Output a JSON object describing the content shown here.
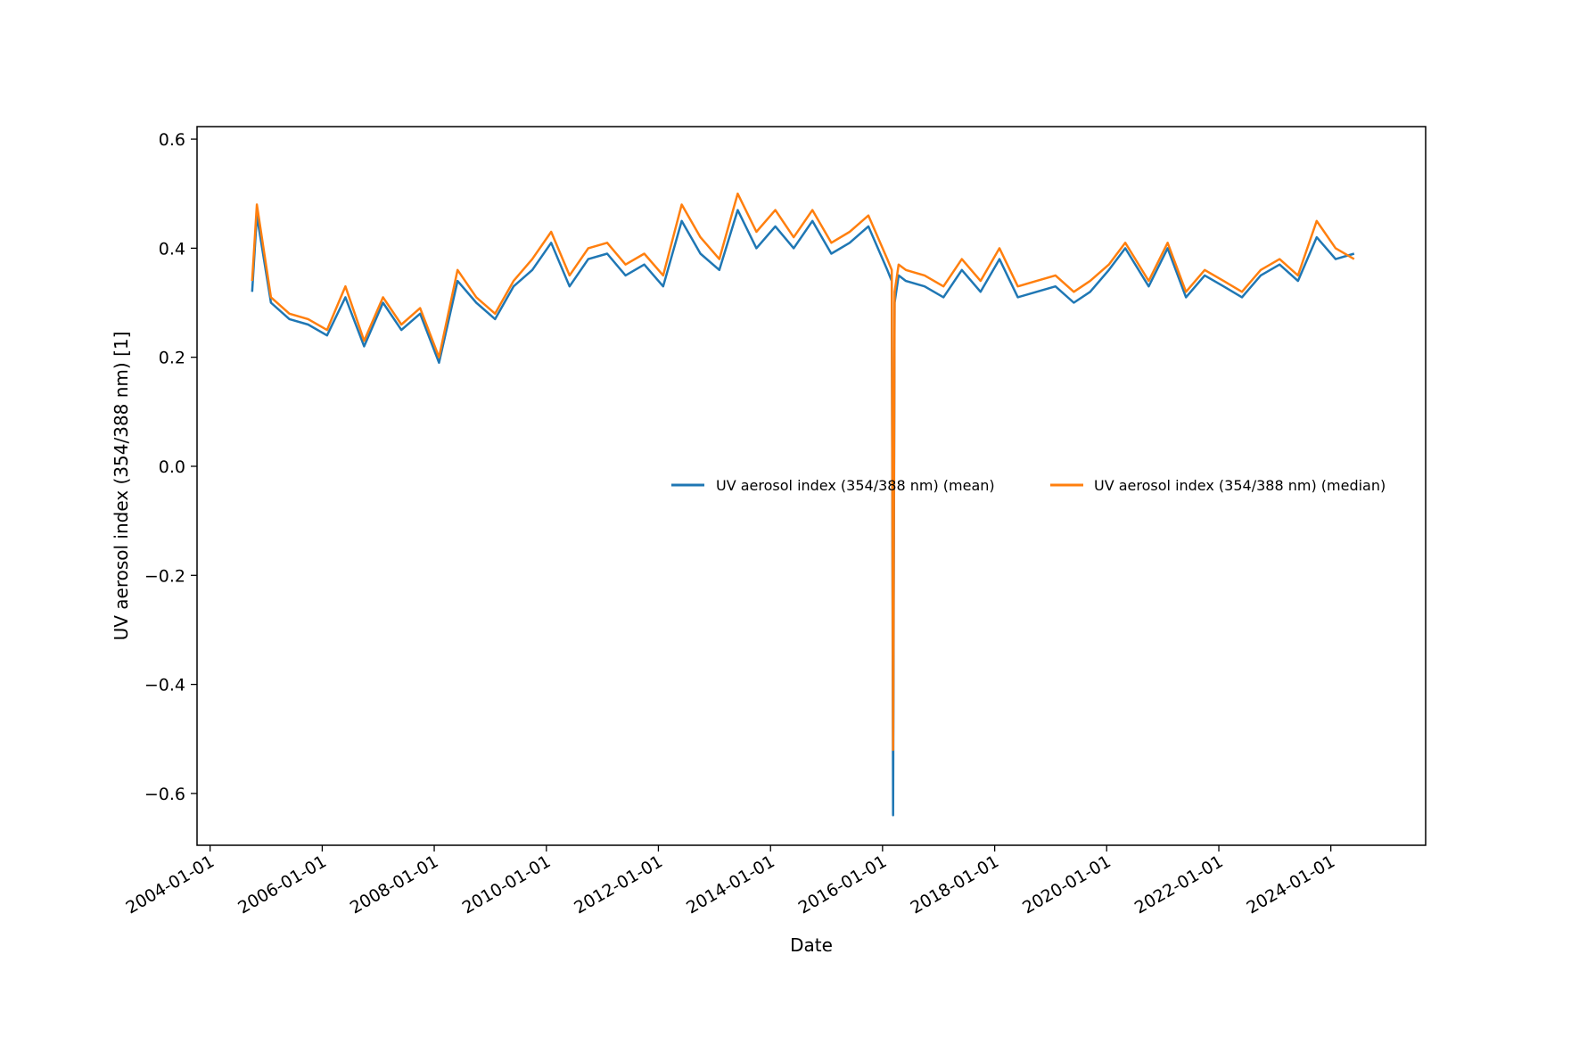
{
  "chart_data": {
    "type": "line",
    "title": "",
    "xlabel": "Date",
    "ylabel": "UV aerosol index (354/388 nm) [1]",
    "x_ticks": [
      "2004-01-01",
      "2006-01-01",
      "2008-01-01",
      "2010-01-01",
      "2012-01-01",
      "2014-01-01",
      "2016-01-01",
      "2018-01-01",
      "2020-01-01",
      "2022-01-01",
      "2024-01-01"
    ],
    "y_ticks": [
      -0.6,
      -0.4,
      -0.2,
      0.0,
      0.2,
      0.4,
      0.6
    ],
    "y_tick_labels": [
      "−0.6",
      "−0.4",
      "−0.2",
      "0.0",
      "0.2",
      "0.4",
      "0.6"
    ],
    "xlim": [
      "2003-10-08",
      "2025-09-10"
    ],
    "ylim": [
      -0.695,
      0.623
    ],
    "grid": false,
    "legend": {
      "placement": "center-right",
      "columns": 2
    },
    "series": [
      {
        "name": "UV aerosol index (354/388 nm) (mean)",
        "color": "#1f77b4",
        "x": [
          "2004-10-01",
          "2004-11-01",
          "2005-02-01",
          "2005-06-01",
          "2005-10-01",
          "2006-02-01",
          "2006-06-01",
          "2006-10-01",
          "2007-02-01",
          "2007-06-01",
          "2007-10-01",
          "2008-02-01",
          "2008-06-01",
          "2008-10-01",
          "2009-02-01",
          "2009-06-01",
          "2009-10-01",
          "2010-02-01",
          "2010-06-01",
          "2010-10-01",
          "2011-02-01",
          "2011-06-01",
          "2011-10-01",
          "2012-02-01",
          "2012-06-01",
          "2012-10-01",
          "2013-02-01",
          "2013-06-01",
          "2013-10-01",
          "2014-02-01",
          "2014-06-01",
          "2014-10-01",
          "2015-02-01",
          "2015-06-01",
          "2015-10-01",
          "2016-02-01",
          "2016-03-01",
          "2016-03-10",
          "2016-03-20",
          "2016-04-15",
          "2016-06-01",
          "2016-10-01",
          "2017-02-01",
          "2017-06-01",
          "2017-10-01",
          "2018-02-01",
          "2018-06-01",
          "2018-10-01",
          "2019-02-01",
          "2019-06-01",
          "2019-09-15",
          "2020-01-15",
          "2020-05-01",
          "2020-10-01",
          "2021-02-01",
          "2021-06-01",
          "2021-10-01",
          "2022-02-01",
          "2022-06-01",
          "2022-10-01",
          "2023-02-01",
          "2023-06-01",
          "2023-10-01",
          "2024-02-01",
          "2024-06-01"
        ],
        "y": [
          0.32,
          0.46,
          0.3,
          0.27,
          0.26,
          0.24,
          0.31,
          0.22,
          0.3,
          0.25,
          0.28,
          0.19,
          0.34,
          0.3,
          0.27,
          0.33,
          0.36,
          0.41,
          0.33,
          0.38,
          0.39,
          0.35,
          0.37,
          0.33,
          0.45,
          0.39,
          0.36,
          0.47,
          0.4,
          0.44,
          0.4,
          0.45,
          0.39,
          0.41,
          0.44,
          0.36,
          0.34,
          -0.64,
          0.3,
          0.35,
          0.34,
          0.33,
          0.31,
          0.36,
          0.32,
          0.38,
          0.31,
          0.32,
          0.33,
          0.3,
          0.32,
          0.36,
          0.4,
          0.33,
          0.4,
          0.31,
          0.35,
          0.33,
          0.31,
          0.35,
          0.37,
          0.34,
          0.42,
          0.38,
          0.39
        ]
      },
      {
        "name": "UV aerosol index (354/388 nm) (median)",
        "color": "#ff7f0e",
        "x": [
          "2004-10-01",
          "2004-11-01",
          "2005-02-01",
          "2005-06-01",
          "2005-10-01",
          "2006-02-01",
          "2006-06-01",
          "2006-10-01",
          "2007-02-01",
          "2007-06-01",
          "2007-10-01",
          "2008-02-01",
          "2008-06-01",
          "2008-10-01",
          "2009-02-01",
          "2009-06-01",
          "2009-10-01",
          "2010-02-01",
          "2010-06-01",
          "2010-10-01",
          "2011-02-01",
          "2011-06-01",
          "2011-10-01",
          "2012-02-01",
          "2012-06-01",
          "2012-10-01",
          "2013-02-01",
          "2013-06-01",
          "2013-10-01",
          "2014-02-01",
          "2014-06-01",
          "2014-10-01",
          "2015-02-01",
          "2015-06-01",
          "2015-10-01",
          "2016-02-01",
          "2016-03-01",
          "2016-03-10",
          "2016-03-20",
          "2016-04-15",
          "2016-06-01",
          "2016-10-01",
          "2017-02-01",
          "2017-06-01",
          "2017-10-01",
          "2018-02-01",
          "2018-06-01",
          "2018-10-01",
          "2019-02-01",
          "2019-06-01",
          "2019-09-15",
          "2020-01-15",
          "2020-05-01",
          "2020-10-01",
          "2021-02-01",
          "2021-06-01",
          "2021-10-01",
          "2022-02-01",
          "2022-06-01",
          "2022-10-01",
          "2023-02-01",
          "2023-06-01",
          "2023-10-01",
          "2024-02-01",
          "2024-06-01"
        ],
        "y": [
          0.34,
          0.48,
          0.31,
          0.28,
          0.27,
          0.25,
          0.33,
          0.23,
          0.31,
          0.26,
          0.29,
          0.2,
          0.36,
          0.31,
          0.28,
          0.34,
          0.38,
          0.43,
          0.35,
          0.4,
          0.41,
          0.37,
          0.39,
          0.35,
          0.48,
          0.42,
          0.38,
          0.5,
          0.43,
          0.47,
          0.42,
          0.47,
          0.41,
          0.43,
          0.46,
          0.38,
          0.36,
          -0.52,
          0.32,
          0.37,
          0.36,
          0.35,
          0.33,
          0.38,
          0.34,
          0.4,
          0.33,
          0.34,
          0.35,
          0.32,
          0.34,
          0.37,
          0.41,
          0.34,
          0.41,
          0.32,
          0.36,
          0.34,
          0.32,
          0.36,
          0.38,
          0.35,
          0.45,
          0.4,
          0.38
        ]
      }
    ]
  }
}
